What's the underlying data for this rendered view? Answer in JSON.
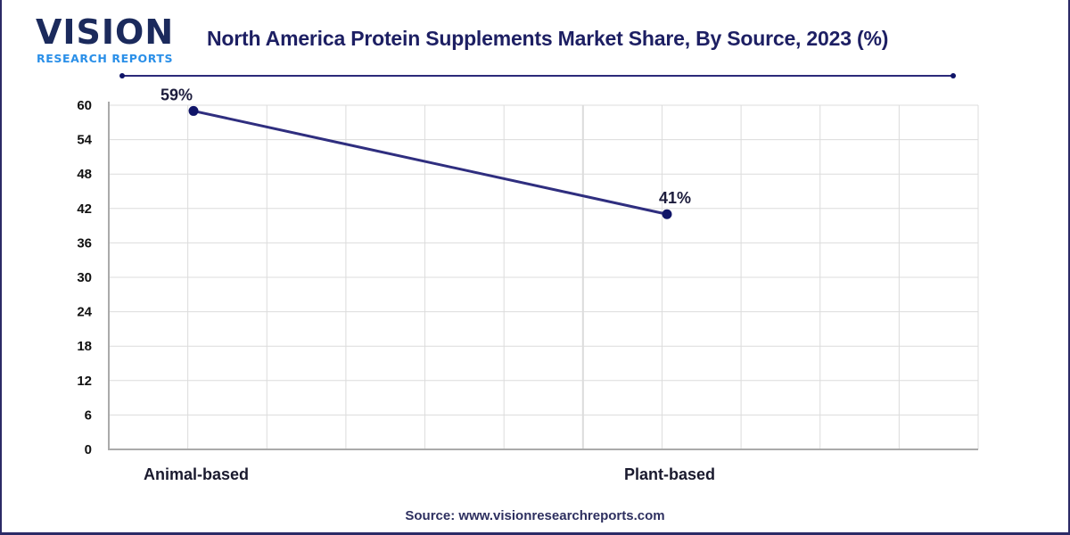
{
  "brand": {
    "logo_main": "VISION",
    "logo_sub": "RESEARCH REPORTS"
  },
  "colors": {
    "line": "#2f2e7f",
    "marker": "#0f1468",
    "grid": "#dcdcdc",
    "axis": "#aaaaaa",
    "title": "#1d1f63",
    "border": "#2b2a66"
  },
  "source_text": "Source: www.visionresearchreports.com",
  "chart_data": {
    "type": "line",
    "title": "North America Protein Supplements Market Share, By Source, 2023 (%)",
    "xlabel": "",
    "ylabel": "",
    "categories": [
      "Animal-based",
      "Plant-based"
    ],
    "series": [
      {
        "name": "Market Share",
        "values": [
          59,
          41
        ],
        "labels": [
          "59%",
          "41%"
        ]
      }
    ],
    "ylim": [
      0,
      60
    ],
    "yticks": [
      0,
      6,
      12,
      18,
      24,
      30,
      36,
      42,
      48,
      54,
      60
    ],
    "grid": true,
    "legend": "none"
  }
}
